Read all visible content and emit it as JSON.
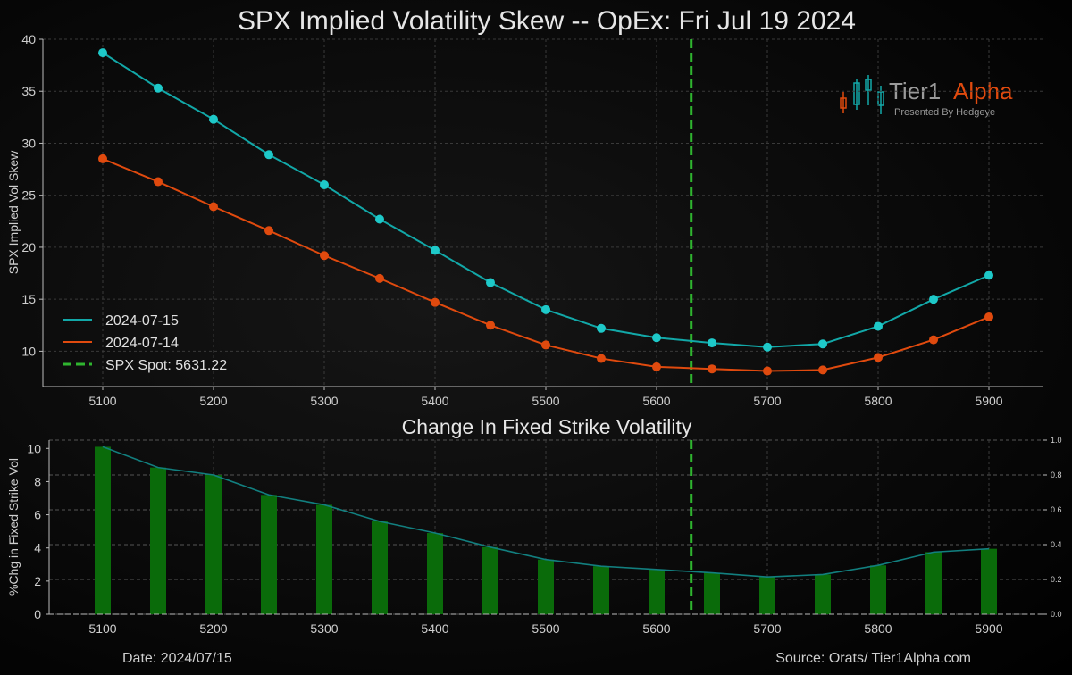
{
  "chart_data": [
    {
      "type": "line",
      "title": "SPX Implied Volatility Skew -- OpEx: Fri Jul 19 2024",
      "xlabel": "",
      "ylabel": "SPX Implied Vol Skew",
      "x": [
        5100,
        5150,
        5200,
        5250,
        5300,
        5350,
        5400,
        5450,
        5500,
        5550,
        5600,
        5650,
        5700,
        5750,
        5800,
        5850,
        5900
      ],
      "xticks": [
        5100,
        5200,
        5300,
        5400,
        5500,
        5600,
        5700,
        5800,
        5900
      ],
      "yticks": [
        10,
        15,
        20,
        25,
        30,
        35,
        40
      ],
      "xlim": [
        5050,
        5950
      ],
      "ylim": [
        6.6,
        40
      ],
      "grid": true,
      "legend_position": "bottom-left",
      "series": [
        {
          "name": "2024-07-15",
          "color": "#12a8a8",
          "marker_color": "#1ec9c9",
          "values": [
            38.7,
            35.3,
            32.3,
            28.9,
            26.0,
            22.7,
            19.7,
            16.6,
            14.0,
            12.2,
            11.3,
            10.8,
            10.4,
            10.7,
            12.4,
            15.0,
            17.3
          ]
        },
        {
          "name": "2024-07-14",
          "color": "#e04a0e",
          "marker_color": "#e04a0e",
          "values": [
            28.5,
            26.3,
            23.9,
            21.6,
            19.2,
            17.0,
            14.7,
            12.5,
            10.6,
            9.3,
            8.5,
            8.3,
            8.1,
            8.2,
            9.4,
            11.1,
            13.3
          ]
        }
      ],
      "spot": {
        "label": "SPX Spot: 5631.22",
        "value": 5631.22,
        "color": "#2fb52f"
      }
    },
    {
      "type": "bar",
      "title": "Change In Fixed Strike Volatility",
      "ylabel": "%Chg in Fixed Strike Vol",
      "x": [
        5100,
        5150,
        5200,
        5250,
        5300,
        5350,
        5400,
        5450,
        5500,
        5550,
        5600,
        5650,
        5700,
        5750,
        5800,
        5850,
        5900
      ],
      "values": [
        10.1,
        8.85,
        8.4,
        7.2,
        6.6,
        5.6,
        4.9,
        4.05,
        3.3,
        2.9,
        2.7,
        2.5,
        2.25,
        2.4,
        2.95,
        3.75,
        3.95
      ],
      "xticks": [
        5100,
        5200,
        5300,
        5400,
        5500,
        5600,
        5700,
        5800,
        5900
      ],
      "yticks": [
        0,
        2,
        4,
        6,
        8,
        10
      ],
      "ylim": [
        0,
        10.5
      ],
      "right_yticks": [
        "0.0",
        "0.2",
        "0.4",
        "0.6",
        "0.8",
        "1.0"
      ],
      "right_ylim": [
        0,
        1.0
      ],
      "bar_color": "#0a6b0a",
      "line_color": "#127f7f",
      "spot_value": 5631.22,
      "grid": true
    }
  ],
  "logo": {
    "part1": "Tier1",
    "part2": "Alpha",
    "tagline": "Presented By Hedgeye"
  },
  "footer": {
    "date": "Date: 2024/07/15",
    "source": "Source: Orats/ Tier1Alpha.com"
  }
}
